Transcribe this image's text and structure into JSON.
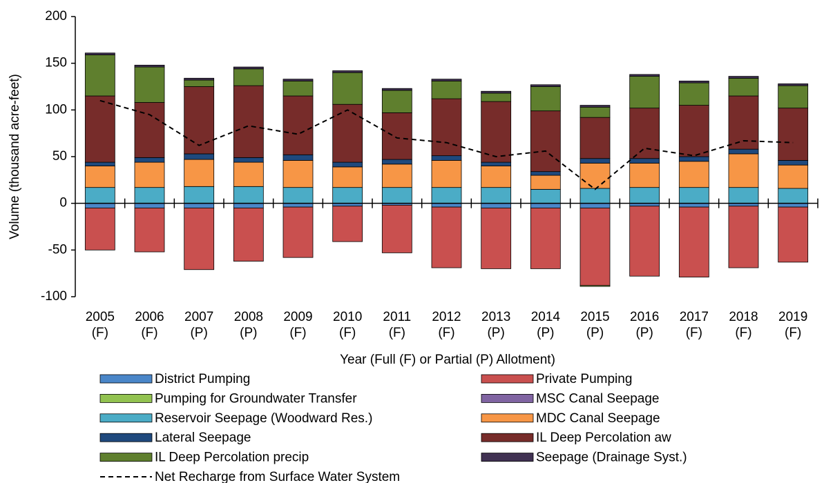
{
  "chart_data": {
    "type": "bar",
    "stacked": true,
    "x_label": "Year (Full (F) or Partial (P) Allotment)",
    "y_label": "Volume (thousand acre-feet)",
    "categories": [
      "2005\n(F)",
      "2006\n(F)",
      "2007\n(P)",
      "2008\n(P)",
      "2009\n(F)",
      "2010\n(F)",
      "2011\n(F)",
      "2012\n(F)",
      "2013\n(P)",
      "2014\n(P)",
      "2015\n(P)",
      "2016\n(P)",
      "2017\n(F)",
      "2018\n(F)",
      "2019\n(F)"
    ],
    "ylim": [
      -100,
      200
    ],
    "yticks": [
      -100,
      -50,
      0,
      50,
      100,
      150,
      200
    ],
    "series": [
      {
        "name": "District Pumping",
        "color": "#4a86c8",
        "values": [
          -5,
          -5,
          -5,
          -5,
          -4,
          -3,
          -2,
          -4,
          -5,
          -5,
          -5,
          -3,
          -4,
          -3,
          -4
        ]
      },
      {
        "name": "Private Pumping",
        "color": "#c9504f",
        "values": [
          -45,
          -47,
          -66,
          -57,
          -54,
          -38,
          -51,
          -65,
          -65,
          -65,
          -83,
          -75,
          -75,
          -66,
          -59
        ]
      },
      {
        "name": "Pumping for Groundwater Transfer",
        "color": "#92c250",
        "values": [
          0,
          0,
          0,
          0,
          0,
          0,
          0,
          0,
          0,
          0,
          -1,
          0,
          0,
          0,
          0
        ]
      },
      {
        "name": "MSC Canal Seepage",
        "color": "#8064a2",
        "values": [
          0,
          0,
          0,
          0,
          0,
          0,
          0,
          0,
          0,
          0,
          0,
          0,
          0,
          0,
          0
        ]
      },
      {
        "name": "Reservoir Seepage (Woodward Res.)",
        "color": "#4bacc6",
        "values": [
          17,
          17,
          18,
          18,
          17,
          17,
          17,
          17,
          17,
          15,
          16,
          17,
          17,
          17,
          16
        ]
      },
      {
        "name": "MDC Canal Seepage",
        "color": "#f79646",
        "values": [
          23,
          27,
          29,
          26,
          29,
          22,
          25,
          29,
          23,
          15,
          27,
          26,
          28,
          36,
          25
        ]
      },
      {
        "name": "Lateral Seepage",
        "color": "#1f497d",
        "values": [
          4,
          5,
          6,
          5,
          6,
          5,
          5,
          5,
          4,
          4,
          5,
          5,
          5,
          5,
          5
        ]
      },
      {
        "name": "IL Deep Percolation aw",
        "color": "#772c2a",
        "values": [
          71,
          59,
          72,
          77,
          63,
          62,
          50,
          61,
          65,
          65,
          44,
          54,
          55,
          57,
          56
        ]
      },
      {
        "name": "IL Deep Percolation precip",
        "color": "#5f7f2e",
        "values": [
          44,
          38,
          7,
          18,
          16,
          34,
          24,
          19,
          9,
          26,
          11,
          34,
          24,
          19,
          24
        ]
      },
      {
        "name": "Seepage (Drainage Syst.)",
        "color": "#403152",
        "values": [
          2,
          2,
          2,
          2,
          2,
          2,
          2,
          2,
          2,
          2,
          2,
          2,
          2,
          2,
          2
        ]
      },
      {
        "name": "Net Recharge from Surface Water System",
        "type": "line",
        "color": "#000000",
        "values": [
          110,
          95,
          62,
          83,
          74,
          100,
          70,
          65,
          50,
          56,
          15,
          59,
          51,
          67,
          65
        ]
      }
    ]
  }
}
